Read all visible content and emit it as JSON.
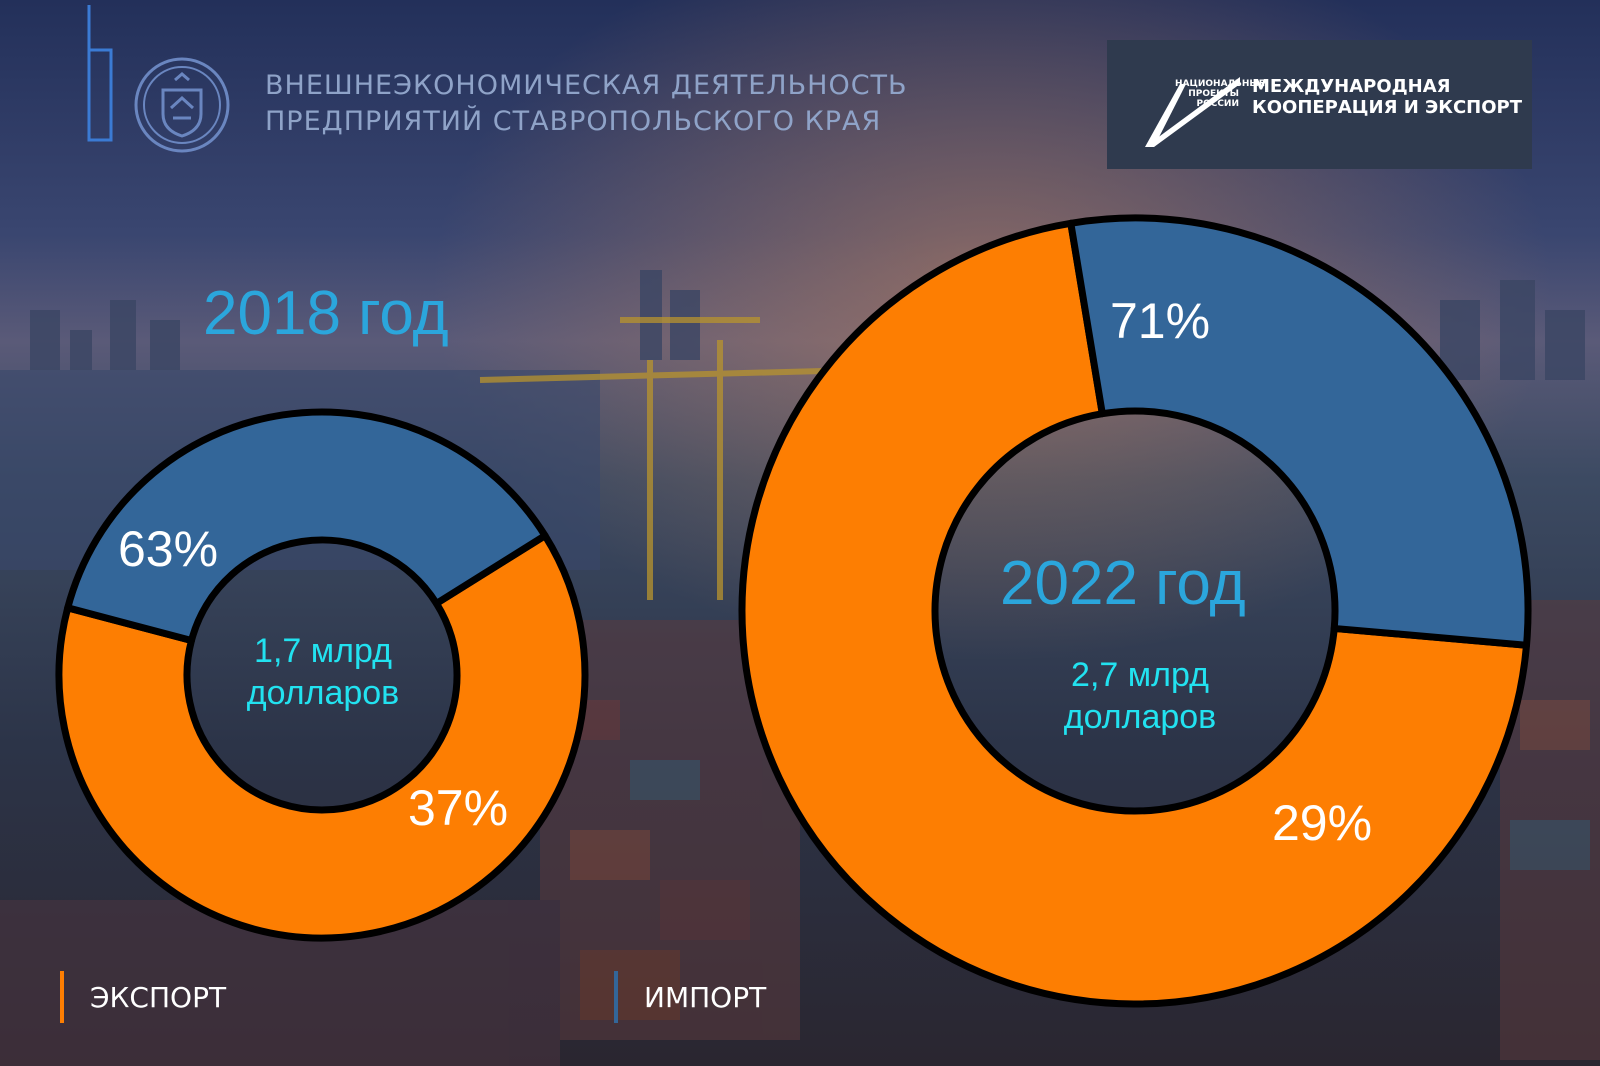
{
  "header": {
    "title_line1": "ВНЕШНЕЭКОНОМИЧЕСКАЯ ДЕЯТЕЛЬНОСТЬ",
    "title_line2": "ПРЕДПРИЯТИЙ СТАВРОПОЛЬСКОГО КРАЯ",
    "emblem_icon": "stavropol-coat-of-arms-icon"
  },
  "national_project": {
    "logo_small_line1": "НАЦИОНАЛЬНЫЕ",
    "logo_small_line2": "ПРОЕКТЫ",
    "logo_small_line3": "РОССИИ",
    "title_line1": "МЕЖДУНАРОДНАЯ",
    "title_line2": "КООПЕРАЦИЯ И ЭКСПОРТ"
  },
  "legend": {
    "export_label": "ЭКСПОРТ",
    "import_label": "ИМПОРТ"
  },
  "colors": {
    "export": "#fd7e02",
    "import": "#336699",
    "year_text": "#2ba6dc",
    "total_text": "#22e2f0"
  },
  "chart_data": [
    {
      "type": "pie",
      "title": "2018 год",
      "total_line1": "1,7 млрд",
      "total_line2": "долларов",
      "series": [
        {
          "name": "ЭКСПОРТ",
          "value": 63,
          "label": "63%"
        },
        {
          "name": "ИМПОРТ",
          "value": 37,
          "label": "37%"
        }
      ]
    },
    {
      "type": "pie",
      "title": "2022 год",
      "total_line1": "2,7 млрд",
      "total_line2": "долларов",
      "series": [
        {
          "name": "ЭКСПОРТ",
          "value": 71,
          "label": "71%"
        },
        {
          "name": "ИМПОРТ",
          "value": 29,
          "label": "29%"
        }
      ]
    }
  ]
}
